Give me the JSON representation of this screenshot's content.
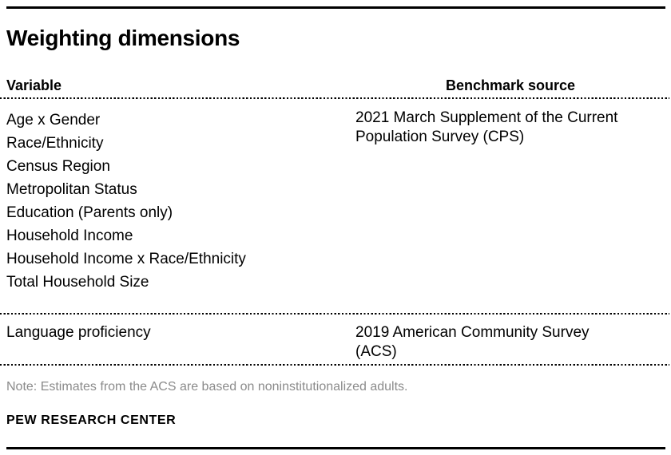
{
  "chart_data": {
    "type": "table",
    "title": "Weighting dimensions",
    "columns": [
      "Variable",
      "Benchmark source"
    ],
    "rows": [
      {
        "variables": [
          "Age x Gender",
          "Race/Ethnicity",
          "Census Region",
          "Metropolitan Status",
          "Education (Parents only)",
          "Household Income",
          "Household Income x Race/Ethnicity",
          "Total Household Size"
        ],
        "benchmark_source": "2021 March Supplement of the Current Population Survey (CPS)"
      },
      {
        "variables": [
          "Language proficiency"
        ],
        "benchmark_source": "2019 American Community Survey (ACS)"
      }
    ],
    "note": "Note: Estimates from the ACS are based on noninstitutionalized adults.",
    "source_label": "PEW RESEARCH CENTER",
    "layout": {
      "grid": "off",
      "legend": "none",
      "dividers": "dotted"
    }
  },
  "colors": {
    "text": "#000000",
    "note_gray": "#8b8b8b",
    "rule": "#000000",
    "background": "#ffffff"
  }
}
